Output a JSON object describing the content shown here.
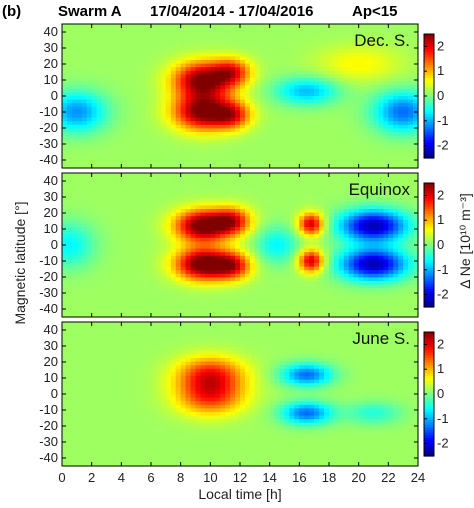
{
  "header": {
    "panel_tag": "(b)",
    "satellite": "Swarm A",
    "period": "17/04/2014 - 17/04/2016",
    "condition": "Ap<15"
  },
  "axes": {
    "xlabel": "Local time [h]",
    "ylabel": "Magnetic latitude [°]",
    "colorbar_label": "Δ Ne [10¹⁰ m⁻³]",
    "x_ticks": [
      "0",
      "2",
      "4",
      "6",
      "8",
      "10",
      "12",
      "14",
      "16",
      "18",
      "20",
      "22",
      "24"
    ],
    "y_ticks": [
      "40",
      "30",
      "20",
      "10",
      "0",
      "-10",
      "-20",
      "-30",
      "-40"
    ],
    "cbar_ticks": [
      "2",
      "1",
      "0",
      "-1",
      "-2"
    ]
  },
  "panels": [
    {
      "label": "Dec. S."
    },
    {
      "label": "Equinox"
    },
    {
      "label": "June S."
    }
  ],
  "chart_data": {
    "type": "heatmap",
    "title": "Swarm A 17/04/2014 - 17/04/2016 Ap<15",
    "xlabel": "Local time [h]",
    "ylabel": "Magnetic latitude [°]",
    "xlim": [
      0,
      24
    ],
    "ylim": [
      -45,
      45
    ],
    "colorbar": {
      "label": "Δ Ne [10¹⁰ m⁻³]",
      "range": [
        -2.5,
        2.5
      ],
      "colormap": "jet"
    },
    "panels": [
      {
        "name": "Dec. S.",
        "features": [
          {
            "kind": "peak",
            "x": 9.5,
            "y": 10,
            "sx": 1.4,
            "sy": 8,
            "amp": 2.4
          },
          {
            "kind": "peak",
            "x": 9.5,
            "y": -10,
            "sx": 1.4,
            "sy": 8,
            "amp": 2.4
          },
          {
            "kind": "peak",
            "x": 11.5,
            "y": 15,
            "sx": 0.9,
            "sy": 6,
            "amp": 1.4
          },
          {
            "kind": "peak",
            "x": 11.5,
            "y": -12,
            "sx": 0.9,
            "sy": 6,
            "amp": 1.4
          },
          {
            "kind": "peak",
            "x": 16.5,
            "y": 3,
            "sx": 1.5,
            "sy": 6,
            "amp": -1.1
          },
          {
            "kind": "peak",
            "x": 23,
            "y": -10,
            "sx": 1.4,
            "sy": 9,
            "amp": -1.5
          },
          {
            "kind": "peak",
            "x": 1,
            "y": -10,
            "sx": 1.4,
            "sy": 9,
            "amp": -1.3
          },
          {
            "kind": "peak",
            "x": 20,
            "y": 20,
            "sx": 2,
            "sy": 8,
            "amp": 0.5
          }
        ]
      },
      {
        "name": "Equinox",
        "features": [
          {
            "kind": "peak",
            "x": 9.5,
            "y": 12,
            "sx": 1.3,
            "sy": 7,
            "amp": 2.6
          },
          {
            "kind": "peak",
            "x": 9.5,
            "y": -12,
            "sx": 1.3,
            "sy": 7,
            "amp": 2.6
          },
          {
            "kind": "peak",
            "x": 11.5,
            "y": 15,
            "sx": 0.9,
            "sy": 6,
            "amp": 1.6
          },
          {
            "kind": "peak",
            "x": 11.5,
            "y": -13,
            "sx": 0.9,
            "sy": 6,
            "amp": 1.6
          },
          {
            "kind": "peak",
            "x": 16.8,
            "y": 13,
            "sx": 0.6,
            "sy": 5,
            "amp": 2.0
          },
          {
            "kind": "peak",
            "x": 16.8,
            "y": -10,
            "sx": 0.6,
            "sy": 5,
            "amp": 2.0
          },
          {
            "kind": "peak",
            "x": 21,
            "y": 12,
            "sx": 1.6,
            "sy": 7,
            "amp": -2.4
          },
          {
            "kind": "peak",
            "x": 21,
            "y": -12,
            "sx": 1.6,
            "sy": 7,
            "amp": -2.4
          },
          {
            "kind": "peak",
            "x": 14.5,
            "y": 0,
            "sx": 1,
            "sy": 8,
            "amp": -0.8
          },
          {
            "kind": "peak",
            "x": 0.5,
            "y": 0,
            "sx": 1.2,
            "sy": 10,
            "amp": -0.8
          }
        ]
      },
      {
        "name": "June S.",
        "features": [
          {
            "kind": "peak",
            "x": 10,
            "y": 12,
            "sx": 1.6,
            "sy": 8,
            "amp": 1.6
          },
          {
            "kind": "peak",
            "x": 10,
            "y": -2,
            "sx": 1.6,
            "sy": 8,
            "amp": 1.4
          },
          {
            "kind": "peak",
            "x": 16.5,
            "y": 12,
            "sx": 1.2,
            "sy": 5,
            "amp": -1.5
          },
          {
            "kind": "peak",
            "x": 16.5,
            "y": -12,
            "sx": 1.2,
            "sy": 5,
            "amp": -1.5
          },
          {
            "kind": "peak",
            "x": 21,
            "y": -12,
            "sx": 1.3,
            "sy": 5,
            "amp": -0.6
          }
        ]
      }
    ]
  }
}
